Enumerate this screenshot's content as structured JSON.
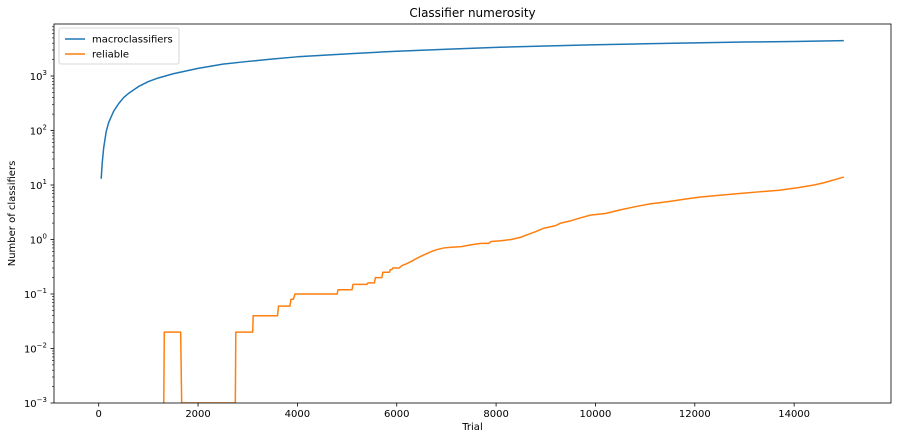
{
  "chart_data": {
    "type": "line",
    "title": "Classifier numerosity",
    "xlabel": "Trial",
    "ylabel": "Number of classifiers",
    "xscale": "linear",
    "yscale": "log",
    "xlim": [
      -900,
      15950
    ],
    "ylim": [
      0.001,
      9000
    ],
    "xticks": [
      0,
      2000,
      4000,
      6000,
      8000,
      10000,
      12000,
      14000
    ],
    "xtick_labels": [
      "0",
      "2000",
      "4000",
      "6000",
      "8000",
      "10000",
      "12000",
      "14000"
    ],
    "yticks": [
      0.001,
      0.01,
      0.1,
      1,
      10,
      100,
      1000
    ],
    "ytick_labels": [
      {
        "base": "10",
        "exp": "−3"
      },
      {
        "base": "10",
        "exp": "−2"
      },
      {
        "base": "10",
        "exp": "−1"
      },
      {
        "base": "10",
        "exp": "0"
      },
      {
        "base": "10",
        "exp": "1"
      },
      {
        "base": "10",
        "exp": "2"
      },
      {
        "base": "10",
        "exp": "3"
      }
    ],
    "grid": false,
    "legend_position": "top-left",
    "series": [
      {
        "name": "macroclassifiers",
        "color": "#1f77b4",
        "x": [
          50,
          70,
          100,
          150,
          200,
          300,
          400,
          500,
          600,
          800,
          1000,
          1200,
          1500,
          2000,
          2500,
          3000,
          3500,
          4000,
          5000,
          6000,
          7000,
          8000,
          9000,
          10000,
          11000,
          12000,
          13000,
          14000,
          15000
        ],
        "y": [
          13,
          25,
          48,
          95,
          140,
          225,
          310,
          400,
          480,
          640,
          790,
          920,
          1100,
          1380,
          1650,
          1850,
          2050,
          2250,
          2550,
          2850,
          3100,
          3350,
          3550,
          3750,
          3900,
          4050,
          4200,
          4300,
          4450
        ]
      },
      {
        "name": "reliable",
        "color": "#ff7f0e",
        "x": [
          1310,
          1320,
          1350,
          1620,
          1650,
          1670,
          2750,
          2760,
          2790,
          3100,
          3110,
          3600,
          3620,
          3850,
          3870,
          3920,
          3950,
          4000,
          4800,
          4820,
          5100,
          5120,
          5400,
          5420,
          5550,
          5570,
          5700,
          5720,
          5850,
          5870,
          5900,
          5920,
          6050,
          6100,
          6200,
          6300,
          6400,
          6500,
          6600,
          6700,
          6800,
          6950,
          7100,
          7300,
          7500,
          7700,
          7850,
          7900,
          8100,
          8300,
          8500,
          8600,
          8800,
          8950,
          9200,
          9300,
          9500,
          9700,
          9900,
          10200,
          10500,
          10800,
          11100,
          11500,
          11800,
          12100,
          12500,
          12900,
          13300,
          13700,
          14100,
          14400,
          14600,
          15000
        ],
        "y": [
          0.001,
          0.02,
          0.02,
          0.02,
          0.02,
          0.001,
          0.001,
          0.02,
          0.02,
          0.02,
          0.04,
          0.04,
          0.06,
          0.06,
          0.08,
          0.08,
          0.1,
          0.1,
          0.1,
          0.12,
          0.12,
          0.15,
          0.15,
          0.16,
          0.16,
          0.2,
          0.2,
          0.25,
          0.25,
          0.28,
          0.28,
          0.3,
          0.3,
          0.33,
          0.36,
          0.4,
          0.45,
          0.5,
          0.55,
          0.6,
          0.65,
          0.7,
          0.72,
          0.74,
          0.8,
          0.85,
          0.85,
          0.92,
          0.95,
          1.0,
          1.1,
          1.2,
          1.4,
          1.6,
          1.8,
          2.0,
          2.2,
          2.5,
          2.8,
          3.0,
          3.5,
          4.0,
          4.5,
          5.0,
          5.5,
          6.0,
          6.5,
          7.0,
          7.5,
          8.0,
          9.0,
          10.0,
          11.0,
          14.0
        ]
      }
    ]
  }
}
